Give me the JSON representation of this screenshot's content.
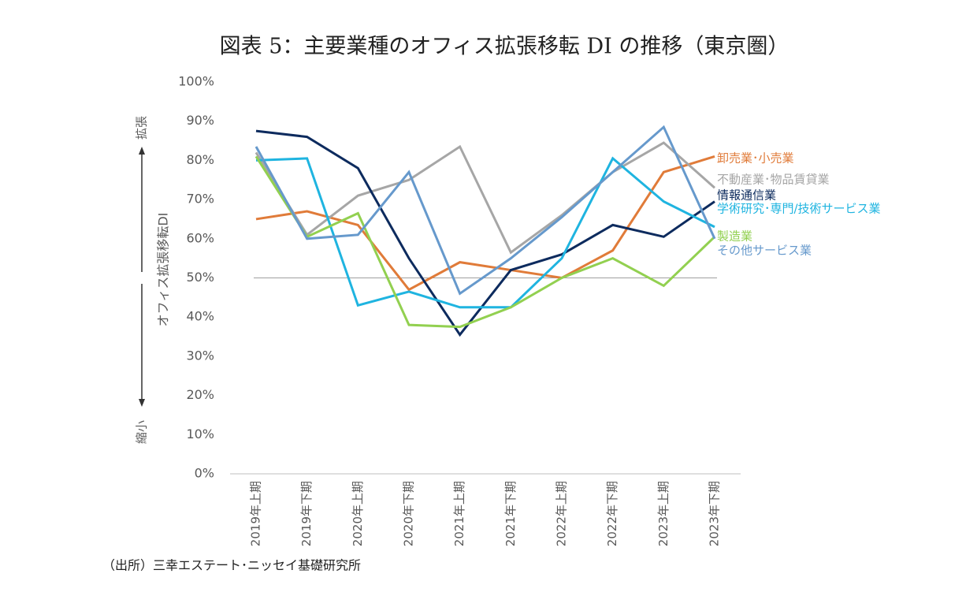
{
  "chart_data": {
    "type": "line",
    "title": "図表 5：主要業種のオフィス拡張移転 DI の推移（東京圏）",
    "y_label": "オフィス拡張移転DI",
    "y_top_note": "拡張",
    "y_bottom_note": "縮小",
    "source": "（出所）三幸エステート･ニッセイ基礎研究所",
    "categories": [
      "2019年上期",
      "2019年下期",
      "2020年上期",
      "2020年下期",
      "2021年上期",
      "2021年下期",
      "2022年上期",
      "2022年下期",
      "2023年上期",
      "2023年下期"
    ],
    "ylim": [
      0,
      100
    ],
    "yticks": [
      {
        "value": 0,
        "label": "0%"
      },
      {
        "value": 10,
        "label": "10%"
      },
      {
        "value": 20,
        "label": "20%"
      },
      {
        "value": 30,
        "label": "30%"
      },
      {
        "value": 40,
        "label": "40%"
      },
      {
        "value": 50,
        "label": "50%"
      },
      {
        "value": 60,
        "label": "60%"
      },
      {
        "value": 70,
        "label": "70%"
      },
      {
        "value": 80,
        "label": "80%"
      },
      {
        "value": 90,
        "label": "90%"
      },
      {
        "value": 100,
        "label": "100%"
      }
    ],
    "reference_line": 50,
    "series": [
      {
        "name": "卸売業･小売業",
        "color": "#e07b39",
        "values": [
          65,
          67,
          63.5,
          47,
          54,
          52,
          50,
          57,
          77,
          81
        ]
      },
      {
        "name": "不動産業･物品賃貸業",
        "color": "#a6a6a6",
        "values": [
          82,
          61,
          71,
          75,
          83.5,
          56.5,
          66,
          77,
          84.5,
          73
        ]
      },
      {
        "name": "情報通信業",
        "color": "#0d2b5e",
        "values": [
          87.5,
          86,
          78,
          55,
          35.5,
          52,
          56,
          63.5,
          60.5,
          69.5
        ]
      },
      {
        "name": "学術研究･専門/技術サービス業",
        "color": "#1fb4e0",
        "values": [
          80,
          80.5,
          43,
          46.5,
          42.5,
          42.5,
          55,
          80.5,
          69.5,
          63
        ]
      },
      {
        "name": "製造業",
        "color": "#92d050",
        "values": [
          81,
          60.5,
          66.5,
          38,
          37.5,
          42.5,
          50,
          55,
          48,
          60.5
        ]
      },
      {
        "name": "その他サービス業",
        "color": "#6699cc",
        "values": [
          83.5,
          60,
          61,
          77,
          46,
          55,
          65.5,
          77,
          88.5,
          60
        ]
      }
    ]
  }
}
